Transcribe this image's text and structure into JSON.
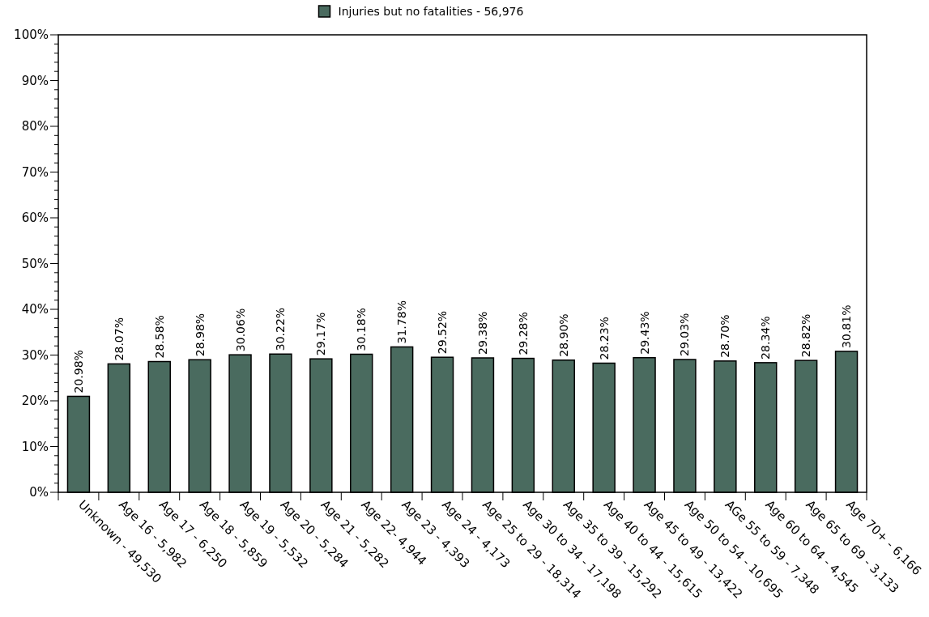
{
  "chart_data": {
    "type": "bar",
    "legend": "top",
    "grid": false,
    "categories": [
      "Unknown - 49,530",
      "Age 16 - 5,982",
      "Age 17 - 6,250",
      "Age 18 - 5,859",
      "Age 19 - 5,532",
      "Age 20 - 5,284",
      "Age 21 - 5,282",
      "Age 22- 4,944",
      "Age 23 - 4,393",
      "Age 24 - 4,173",
      "Age 25 to 29 - 18,314",
      "Age 30 to 34 - 17,198",
      "Age 35 to 39 - 15,292",
      "Age 40 to 44 - 15,615",
      "Age 45 to 49 - 13,422",
      "Age 50 to 54 - 10,695",
      "AGe 55 to 59 - 7,348",
      "Age 60 to 64 - 4,545",
      "Age 65 to 69 - 3,133",
      "Age 70+ - 6,166"
    ],
    "series": [
      {
        "name": "Injuries but no fatalities - 56,976",
        "color": "#4a6b5f",
        "values": [
          20.98,
          28.07,
          28.58,
          28.98,
          30.06,
          30.22,
          29.17,
          30.18,
          31.78,
          29.52,
          29.38,
          29.28,
          28.9,
          28.23,
          29.43,
          29.03,
          28.7,
          28.34,
          28.82,
          30.81
        ],
        "value_labels": [
          "20.98%",
          "28.07%",
          "28.58%",
          "28.98%",
          "30.06%",
          "30.22%",
          "29.17%",
          "30.18%",
          "31.78%",
          "29.52%",
          "29.38%",
          "29.28%",
          "28.90%",
          "28.23%",
          "29.43%",
          "29.03%",
          "28.70%",
          "28.34%",
          "28.82%",
          "30.81%"
        ]
      }
    ],
    "ylim": [
      0,
      100
    ],
    "yticks": [
      {
        "value": 0,
        "label": "0%"
      },
      {
        "value": 2,
        "label": null
      },
      {
        "value": 4,
        "label": null
      },
      {
        "value": 6,
        "label": null
      },
      {
        "value": 8,
        "label": null
      },
      {
        "value": 10,
        "label": "10%"
      },
      {
        "value": 12,
        "label": null
      },
      {
        "value": 14,
        "label": null
      },
      {
        "value": 16,
        "label": null
      },
      {
        "value": 18,
        "label": null
      },
      {
        "value": 20,
        "label": "20%"
      },
      {
        "value": 22,
        "label": null
      },
      {
        "value": 24,
        "label": null
      },
      {
        "value": 26,
        "label": null
      },
      {
        "value": 28,
        "label": null
      },
      {
        "value": 30,
        "label": "30%"
      },
      {
        "value": 32,
        "label": null
      },
      {
        "value": 34,
        "label": null
      },
      {
        "value": 36,
        "label": null
      },
      {
        "value": 38,
        "label": null
      },
      {
        "value": 40,
        "label": "40%"
      },
      {
        "value": 42,
        "label": null
      },
      {
        "value": 44,
        "label": null
      },
      {
        "value": 46,
        "label": null
      },
      {
        "value": 48,
        "label": null
      },
      {
        "value": 50,
        "label": "50%"
      },
      {
        "value": 52,
        "label": null
      },
      {
        "value": 54,
        "label": null
      },
      {
        "value": 56,
        "label": null
      },
      {
        "value": 58,
        "label": null
      },
      {
        "value": 60,
        "label": "60%"
      },
      {
        "value": 62,
        "label": null
      },
      {
        "value": 64,
        "label": null
      },
      {
        "value": 66,
        "label": null
      },
      {
        "value": 68,
        "label": null
      },
      {
        "value": 70,
        "label": "70%"
      },
      {
        "value": 72,
        "label": null
      },
      {
        "value": 74,
        "label": null
      },
      {
        "value": 76,
        "label": null
      },
      {
        "value": 78,
        "label": null
      },
      {
        "value": 80,
        "label": "80%"
      },
      {
        "value": 82,
        "label": null
      },
      {
        "value": 84,
        "label": null
      },
      {
        "value": 86,
        "label": null
      },
      {
        "value": 88,
        "label": null
      },
      {
        "value": 90,
        "label": "90%"
      },
      {
        "value": 92,
        "label": null
      },
      {
        "value": 94,
        "label": null
      },
      {
        "value": 96,
        "label": null
      },
      {
        "value": 98,
        "label": null
      },
      {
        "value": 100,
        "label": "100%"
      }
    ]
  }
}
